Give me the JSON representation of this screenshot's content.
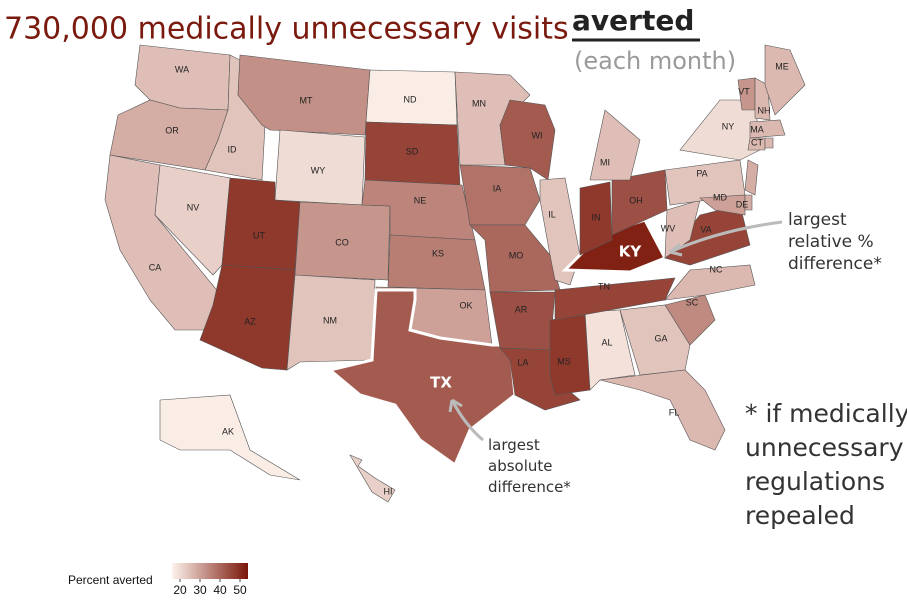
{
  "chart_data": {
    "type": "choropleth",
    "title": "730,000 medically unnecessary visits",
    "title_emphasis": "averted",
    "subtitle": "(each month)",
    "annotations": {
      "relative": "largest relative % difference*",
      "absolute": "largest absolute difference*",
      "footnote": "* if medically unnecessary regulations repealed"
    },
    "legend": {
      "title": "Percent averted",
      "lim": [
        16,
        54
      ],
      "ticks": [
        20,
        30,
        40,
        50
      ],
      "colors": [
        "#fdf3ec",
        "#7a1508"
      ]
    },
    "states": [
      {
        "label": "WA",
        "value": 25
      },
      {
        "label": "OR",
        "value": 28
      },
      {
        "label": "CA",
        "value": 25
      },
      {
        "label": "NV",
        "value": 22
      },
      {
        "label": "ID",
        "value": 24
      },
      {
        "label": "MT",
        "value": 33
      },
      {
        "label": "WY",
        "value": 20
      },
      {
        "label": "UT",
        "value": 48
      },
      {
        "label": "AZ",
        "value": 48
      },
      {
        "label": "CO",
        "value": 32
      },
      {
        "label": "NM",
        "value": 24
      },
      {
        "label": "ND",
        "value": 17
      },
      {
        "label": "SD",
        "value": 46
      },
      {
        "label": "NE",
        "value": 35
      },
      {
        "label": "KS",
        "value": 36
      },
      {
        "label": "OK",
        "value": 30
      },
      {
        "label": "TX",
        "value": 42
      },
      {
        "label": "MN",
        "value": 25
      },
      {
        "label": "IA",
        "value": 38
      },
      {
        "label": "MO",
        "value": 40
      },
      {
        "label": "AR",
        "value": 44
      },
      {
        "label": "LA",
        "value": 46
      },
      {
        "label": "WI",
        "value": 42
      },
      {
        "label": "IL",
        "value": 24
      },
      {
        "label": "MS",
        "value": 48
      },
      {
        "label": "AL",
        "value": 19
      },
      {
        "label": "TN",
        "value": 46
      },
      {
        "label": "KY",
        "value": 52
      },
      {
        "label": "IN",
        "value": 48
      },
      {
        "label": "OH",
        "value": 44
      },
      {
        "label": "MI",
        "value": 25
      },
      {
        "label": "GA",
        "value": 24
      },
      {
        "label": "FL",
        "value": 26
      },
      {
        "label": "SC",
        "value": 34
      },
      {
        "label": "NC",
        "value": 26
      },
      {
        "label": "VA",
        "value": 46
      },
      {
        "label": "WV",
        "value": 25
      },
      {
        "label": "PA",
        "value": 24
      },
      {
        "label": "NY",
        "value": 20
      },
      {
        "label": "VT",
        "value": 32
      },
      {
        "label": "NH",
        "value": 26
      },
      {
        "label": "ME",
        "value": 26
      },
      {
        "label": "MA",
        "value": 26
      },
      {
        "label": "CT",
        "value": 26
      },
      {
        "label": null,
        "value": 26
      },
      {
        "label": null,
        "value": 28
      },
      {
        "label": "MD",
        "value": 30
      },
      {
        "label": "DE",
        "value": 28
      },
      {
        "label": "AK",
        "value": 17
      },
      {
        "label": "HI",
        "value": 22
      }
    ]
  }
}
